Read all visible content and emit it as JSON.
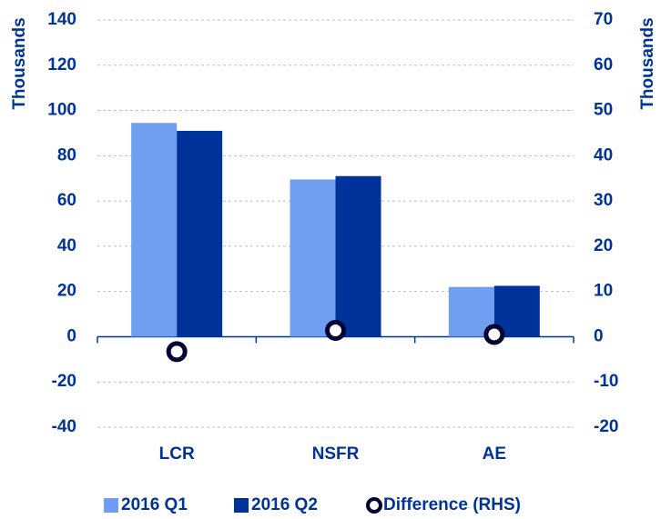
{
  "chart_data": {
    "type": "bar",
    "categories": [
      "LCR",
      "NSFR",
      "AE"
    ],
    "series": [
      {
        "name": "2016 Q1",
        "color": "#6f9ef0",
        "values": [
          94.5,
          69.5,
          22
        ]
      },
      {
        "name": "2016 Q2",
        "color": "#003399",
        "values": [
          91,
          71,
          22.5
        ]
      },
      {
        "name": "Difference (RHS)",
        "type": "scatter",
        "axis": "y2",
        "color": "#000033",
        "values": [
          -3.3,
          1.4,
          0.5
        ]
      }
    ],
    "ylabel": "Thousands",
    "y2label": "Thousands",
    "ylim": [
      -40,
      140
    ],
    "yticks": [
      -40,
      -20,
      0,
      20,
      40,
      60,
      80,
      100,
      120,
      140
    ],
    "y2lim": [
      -20,
      70
    ],
    "y2ticks": [
      -20,
      -10,
      0,
      10,
      20,
      30,
      40,
      50,
      60,
      70
    ],
    "grid": true,
    "legend": "bottom"
  }
}
